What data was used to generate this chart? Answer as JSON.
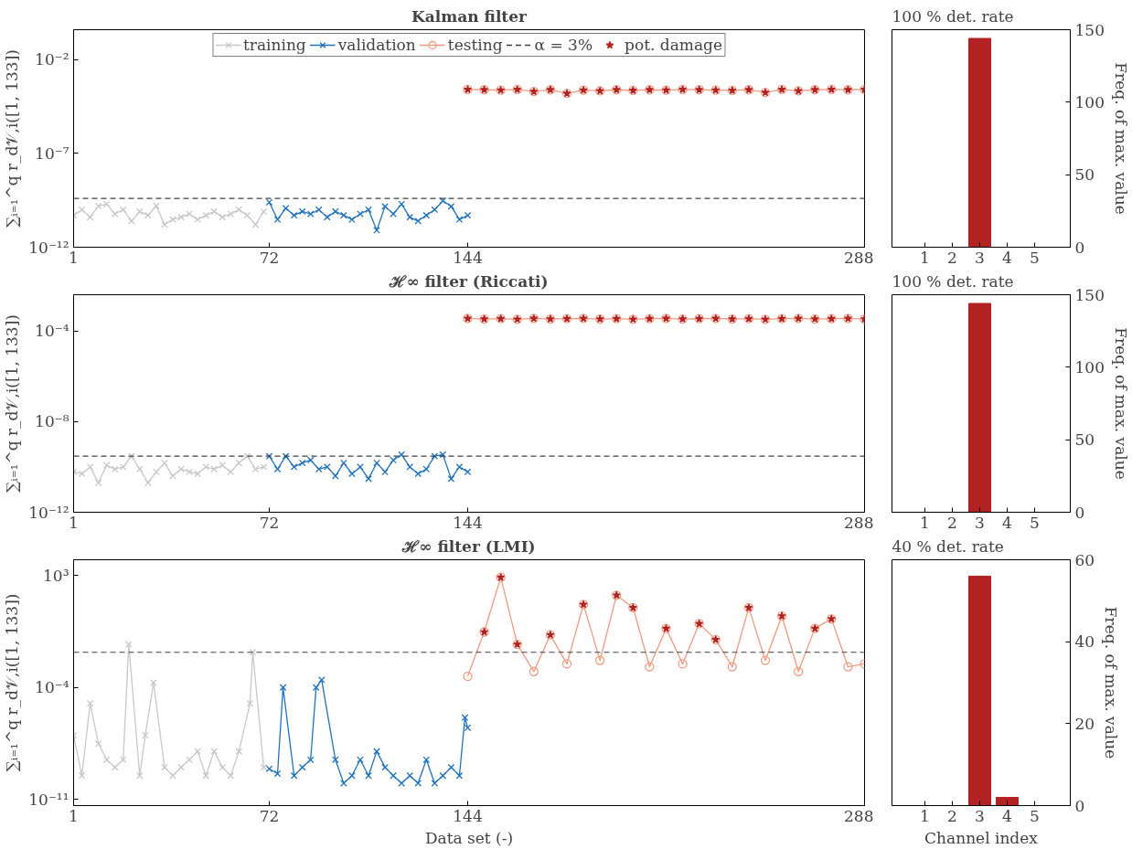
{
  "chart_data": [
    {
      "type": "line",
      "title": "Kalman filter",
      "ylabel": "∑ᵢ₌₁^q r_d𝒱,i([1, 133])",
      "log": "y",
      "grid": false,
      "legend": "top",
      "xlim": [
        1,
        288
      ],
      "xticks": [
        1,
        72,
        144,
        288
      ],
      "ylim": [
        1e-12,
        0.4
      ],
      "yticks": [
        {
          "value": 1e-12,
          "label": "10⁻¹²"
        },
        {
          "value": 1e-07,
          "label": "10⁻⁷"
        },
        {
          "value": 0.01,
          "label": "10⁻²"
        }
      ],
      "series": [
        {
          "name": "training",
          "type": "line",
          "marker": "cross",
          "color": "#c8c8c8",
          "x": [
            1,
            4,
            7,
            10,
            13,
            16,
            19,
            22,
            25,
            28,
            31,
            34,
            37,
            40,
            43,
            46,
            49,
            52,
            55,
            58,
            61,
            64,
            67,
            70
          ],
          "values": [
            5e-11,
            1e-10,
            4e-11,
            1.6e-10,
            2e-10,
            6e-11,
            1e-10,
            2.5e-11,
            8e-11,
            5e-11,
            1.6e-10,
            1.6e-11,
            3e-11,
            4e-11,
            6e-11,
            3e-11,
            5e-11,
            8e-11,
            4e-11,
            6e-11,
            1e-10,
            5e-11,
            1.6e-11,
            8e-11
          ]
        },
        {
          "name": "validation",
          "type": "line",
          "marker": "cross",
          "color": "#1f72bd",
          "x": [
            72,
            75,
            78,
            81,
            84,
            87,
            90,
            93,
            96,
            99,
            102,
            105,
            108,
            111,
            114,
            117,
            120,
            123,
            126,
            129,
            132,
            135,
            138,
            141,
            144
          ],
          "values": [
            2.5e-10,
            3e-11,
            1.2e-10,
            5e-11,
            8e-11,
            6e-11,
            1e-10,
            4e-11,
            8e-11,
            5e-11,
            3e-11,
            6e-11,
            1e-10,
            8e-12,
            1.5e-10,
            6e-11,
            2e-10,
            4e-11,
            2.5e-11,
            5e-11,
            1e-10,
            3e-10,
            1.5e-10,
            3e-11,
            5e-11
          ]
        },
        {
          "name": "testing",
          "type": "line",
          "marker": "circle",
          "color": "#ef9a80",
          "x": [
            144,
            150,
            156,
            162,
            168,
            174,
            180,
            186,
            192,
            198,
            204,
            210,
            216,
            222,
            228,
            234,
            240,
            246,
            252,
            258,
            264,
            270,
            276,
            282,
            288
          ],
          "values": [
            0.00026,
            0.00025,
            0.00024,
            0.00026,
            0.0002,
            0.00025,
            0.00016,
            0.00024,
            0.00022,
            0.00025,
            0.00023,
            0.00025,
            0.00024,
            0.00026,
            0.00025,
            0.00024,
            0.00023,
            0.00025,
            0.00018,
            0.00026,
            0.00022,
            0.00025,
            0.00026,
            0.00025,
            0.00026
          ]
        },
        {
          "name": "α = 3%",
          "type": "line",
          "marker": "none",
          "line_style": "dashed",
          "color": "#404040",
          "x": [
            1,
            288
          ],
          "values": [
            4e-10,
            4e-10
          ]
        },
        {
          "name": "pot. damage",
          "type": "scatter",
          "marker": "star",
          "color": "#b22222",
          "x": [
            144,
            150,
            156,
            162,
            168,
            174,
            180,
            186,
            192,
            198,
            204,
            210,
            216,
            222,
            228,
            234,
            240,
            246,
            252,
            258,
            264,
            270,
            276,
            282,
            288
          ],
          "values": [
            0.00026,
            0.00025,
            0.00024,
            0.00026,
            0.0002,
            0.00025,
            0.00016,
            0.00024,
            0.00022,
            0.00025,
            0.00023,
            0.00025,
            0.00024,
            0.00026,
            0.00025,
            0.00024,
            0.00023,
            0.00025,
            0.00018,
            0.00026,
            0.00022,
            0.00025,
            0.00026,
            0.00025,
            0.00026
          ]
        }
      ]
    },
    {
      "type": "bar",
      "title": "100 % det. rate",
      "ylabel": "Freq. of max. value",
      "categories": [
        "1",
        "2",
        "3",
        "4",
        "5"
      ],
      "values": [
        0,
        0,
        144,
        0,
        0
      ],
      "color": "#b22222",
      "ylim": [
        0,
        150
      ],
      "yticks": [
        0,
        50,
        100,
        150
      ],
      "grid": false
    },
    {
      "type": "line",
      "title": "ℋ∞ filter (Riccati)",
      "ylabel": "∑ᵢ₌₁^q r_d𝒱,i([1, 133])",
      "log": "y",
      "grid": false,
      "legend": false,
      "xlim": [
        1,
        288
      ],
      "xticks": [
        1,
        72,
        144,
        288
      ],
      "ylim": [
        1e-12,
        0.004
      ],
      "yticks": [
        {
          "value": 1e-12,
          "label": "10⁻¹²"
        },
        {
          "value": 1e-08,
          "label": "10⁻⁸"
        },
        {
          "value": 0.0001,
          "label": "10⁻⁴"
        }
      ],
      "series": [
        {
          "type": "line",
          "marker": "cross",
          "color": "#c8c8c8",
          "x": [
            1,
            4,
            7,
            10,
            13,
            16,
            19,
            22,
            25,
            28,
            31,
            34,
            37,
            40,
            43,
            46,
            49,
            52,
            55,
            58,
            61,
            64,
            67,
            70
          ],
          "values": [
            6e-11,
            5e-11,
            1e-10,
            2e-11,
            1.2e-10,
            8e-11,
            1e-10,
            3e-10,
            8e-11,
            2e-11,
            6e-11,
            1.5e-10,
            4e-11,
            8e-11,
            6e-11,
            5e-11,
            1e-10,
            8e-11,
            1.2e-10,
            6e-11,
            1.5e-10,
            3e-10,
            8e-11,
            1e-10
          ]
        },
        {
          "type": "line",
          "marker": "cross",
          "color": "#1f72bd",
          "x": [
            72,
            75,
            78,
            81,
            84,
            87,
            90,
            93,
            96,
            99,
            102,
            105,
            108,
            111,
            114,
            117,
            120,
            123,
            126,
            129,
            132,
            135,
            138,
            141,
            144
          ],
          "values": [
            3e-10,
            8e-11,
            3e-10,
            1e-10,
            1.5e-10,
            2e-10,
            8e-11,
            1e-10,
            4e-11,
            1.5e-10,
            5e-11,
            1e-10,
            3e-11,
            1.5e-10,
            6e-11,
            2e-10,
            3.5e-10,
            1e-10,
            5e-11,
            8e-11,
            3e-10,
            3.5e-10,
            3e-11,
            1e-10,
            6e-11
          ]
        },
        {
          "type": "line",
          "marker": "circle",
          "color": "#ef9a80",
          "x": [
            144,
            150,
            156,
            162,
            168,
            174,
            180,
            186,
            192,
            198,
            204,
            210,
            216,
            222,
            228,
            234,
            240,
            246,
            252,
            258,
            264,
            270,
            276,
            282,
            288
          ],
          "values": [
            0.00036,
            0.00034,
            0.00035,
            0.00033,
            0.00036,
            0.00034,
            0.00035,
            0.00036,
            0.00034,
            0.00035,
            0.00033,
            0.00035,
            0.00036,
            0.00034,
            0.00035,
            0.00036,
            0.00034,
            0.00035,
            0.00033,
            0.00035,
            0.00036,
            0.00034,
            0.00035,
            0.00036,
            0.00034
          ]
        },
        {
          "type": "scatter",
          "marker": "star",
          "color": "#b22222",
          "x": [
            144,
            150,
            156,
            162,
            168,
            174,
            180,
            186,
            192,
            198,
            204,
            210,
            216,
            222,
            228,
            234,
            240,
            246,
            252,
            258,
            264,
            270,
            276,
            282,
            288
          ],
          "values": [
            0.00036,
            0.00034,
            0.00035,
            0.00033,
            0.00036,
            0.00034,
            0.00035,
            0.00036,
            0.00034,
            0.00035,
            0.00033,
            0.00035,
            0.00036,
            0.00034,
            0.00035,
            0.00036,
            0.00034,
            0.00035,
            0.00033,
            0.00035,
            0.00036,
            0.00034,
            0.00035,
            0.00036,
            0.00034
          ]
        }
      ],
      "ref_lines": [
        {
          "axis": "y",
          "value": 3e-10,
          "color": "#404040",
          "line_style": "dashed"
        }
      ]
    },
    {
      "type": "bar",
      "title": "100 % det. rate",
      "ylabel": "Freq. of max. value",
      "categories": [
        "1",
        "2",
        "3",
        "4",
        "5"
      ],
      "values": [
        0,
        0,
        144,
        0,
        0
      ],
      "color": "#b22222",
      "ylim": [
        0,
        150
      ],
      "yticks": [
        0,
        50,
        100,
        150
      ],
      "grid": false
    },
    {
      "type": "line",
      "title": "ℋ∞ filter (LMI)",
      "ylabel": "∑ᵢ₌₁^q r_d𝒱,i([1, 133])",
      "xlabel": "Data set (-)",
      "log": "y",
      "grid": false,
      "legend": false,
      "xlim": [
        1,
        288
      ],
      "xticks": [
        1,
        72,
        144,
        288
      ],
      "ylim": [
        4e-12,
        10000
      ],
      "yticks": [
        {
          "value": 1e-11,
          "label": "10⁻¹¹"
        },
        {
          "value": 0.0001,
          "label": "10⁻⁴"
        },
        {
          "value": 1000,
          "label": "10³"
        }
      ],
      "series": [
        {
          "type": "line",
          "marker": "cross",
          "color": "#c8c8c8",
          "x": [
            1,
            4,
            7,
            10,
            13,
            16,
            19,
            21,
            25,
            27,
            30,
            34,
            37,
            40,
            43,
            46,
            49,
            52,
            55,
            58,
            61,
            65,
            66,
            70
          ],
          "values": [
            1e-07,
            3e-10,
            1e-05,
            3e-08,
            3e-09,
            1e-09,
            3e-09,
            0.05,
            3e-10,
            1e-07,
            0.0002,
            1e-09,
            3e-10,
            1e-09,
            3e-09,
            1e-08,
            3e-10,
            1e-08,
            1e-09,
            3e-10,
            1e-08,
            1e-05,
            0.016,
            1e-09
          ]
        },
        {
          "type": "line",
          "marker": "cross",
          "color": "#1f72bd",
          "x": [
            72,
            75,
            77,
            81,
            84,
            87,
            89,
            91,
            96,
            99,
            102,
            105,
            108,
            111,
            114,
            117,
            120,
            123,
            126,
            129,
            132,
            135,
            138,
            141,
            143,
            144
          ],
          "values": [
            8e-10,
            4e-10,
            0.0001,
            3e-10,
            1e-09,
            3e-09,
            0.0001,
            0.0003,
            3e-09,
            1e-10,
            3e-10,
            3e-09,
            3e-10,
            1e-08,
            1e-09,
            3e-10,
            1e-10,
            3e-10,
            1e-10,
            3e-09,
            1e-10,
            3e-10,
            1e-09,
            3e-10,
            1.3e-06,
            3e-07
          ]
        },
        {
          "type": "line",
          "marker": "circle",
          "color": "#ef9a80",
          "x": [
            144,
            150,
            156,
            162,
            168,
            174,
            180,
            186,
            192,
            198,
            204,
            210,
            216,
            222,
            228,
            234,
            240,
            246,
            252,
            258,
            264,
            270,
            276,
            282,
            288
          ],
          "values": [
            0.0005,
            0.3,
            800,
            0.05,
            0.001,
            0.2,
            0.003,
            16,
            0.005,
            60,
            10,
            0.002,
            0.5,
            0.003,
            1,
            0.1,
            0.002,
            10,
            0.005,
            3,
            0.001,
            0.5,
            2,
            0.002,
            0.003
          ]
        },
        {
          "type": "scatter",
          "marker": "star",
          "color": "#b22222",
          "x": [
            150,
            156,
            162,
            174,
            186,
            198,
            204,
            216,
            228,
            234,
            246,
            258,
            270,
            276
          ],
          "values": [
            0.3,
            800,
            0.05,
            0.2,
            16,
            60,
            10,
            0.5,
            1,
            0.1,
            10,
            3,
            0.5,
            2
          ]
        }
      ],
      "ref_lines": [
        {
          "axis": "y",
          "value": 0.016,
          "color": "#404040",
          "line_style": "dashed"
        }
      ]
    },
    {
      "type": "bar",
      "title": "40 % det. rate",
      "ylabel": "Freq. of max. value",
      "xlabel": "Channel index",
      "categories": [
        "1",
        "2",
        "3",
        "4",
        "5"
      ],
      "values": [
        0,
        0,
        56,
        2,
        0
      ],
      "color": "#b22222",
      "ylim": [
        0,
        60
      ],
      "yticks": [
        0,
        20,
        40,
        60
      ],
      "grid": false
    }
  ]
}
